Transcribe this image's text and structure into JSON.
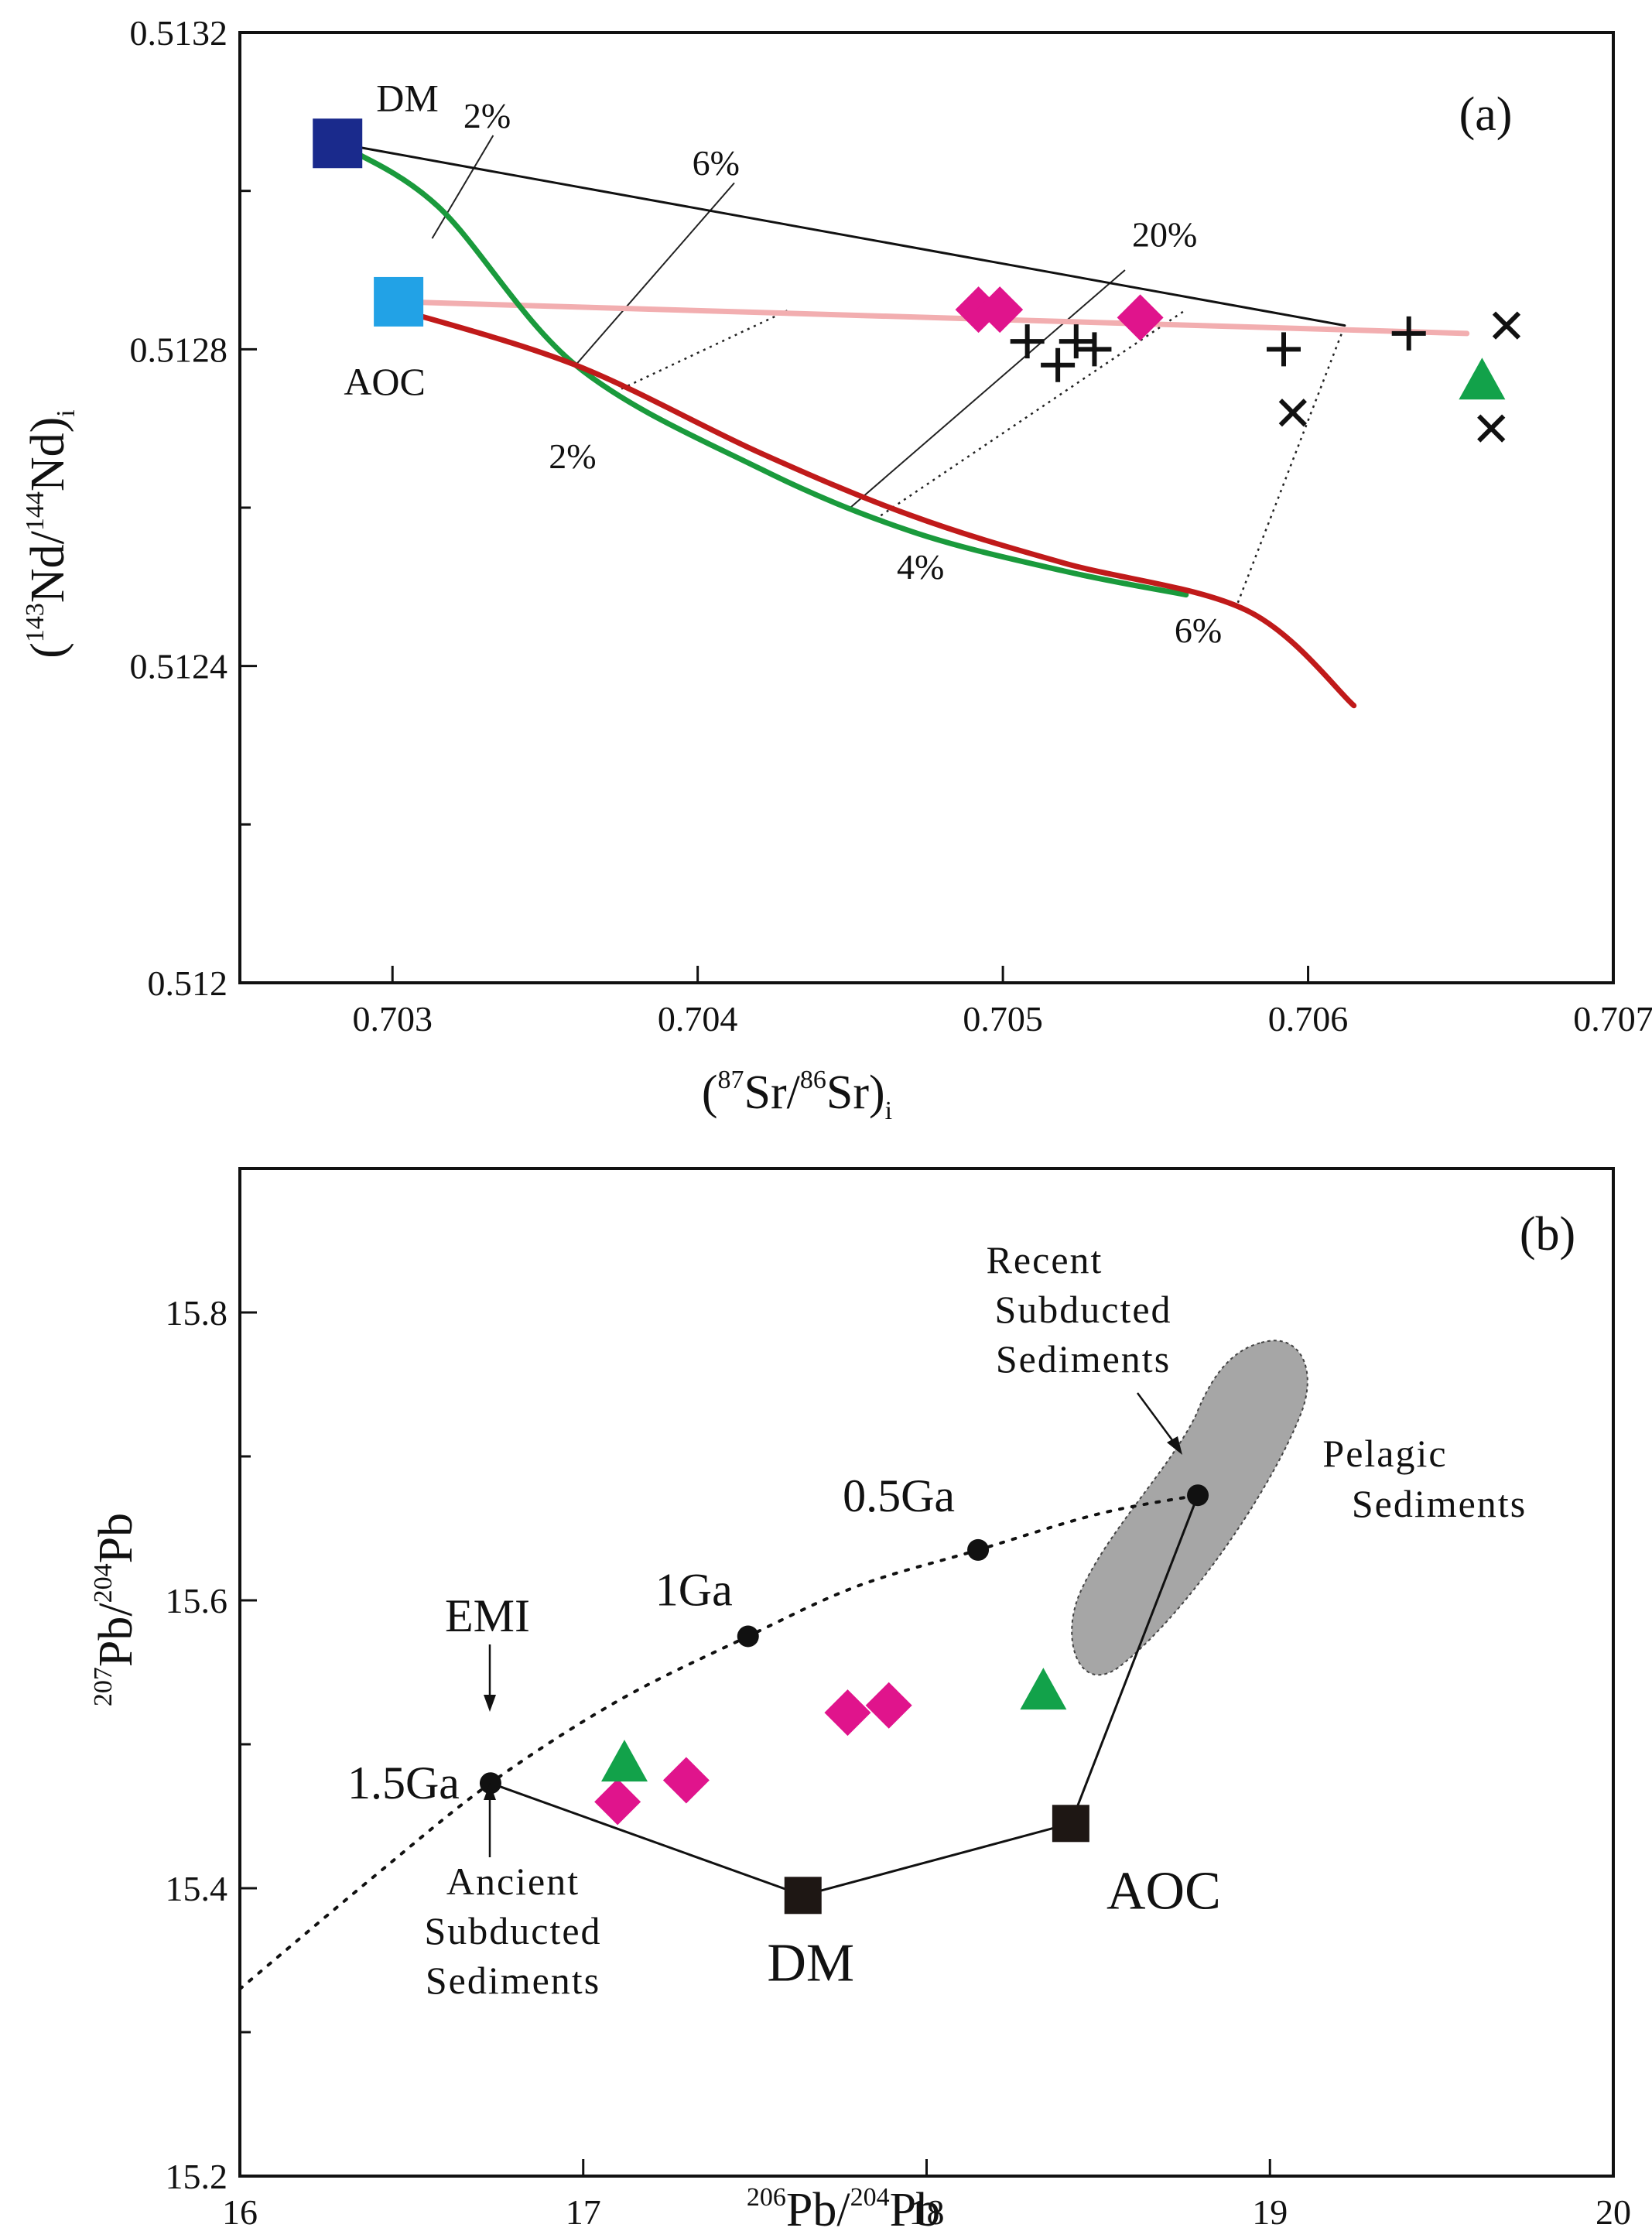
{
  "chart_data": [
    {
      "panel": "(a)",
      "type": "scatter",
      "xlabel": "(87Sr/86Sr)i",
      "ylabel": "(143Nd/144Nd)i",
      "xlim": [
        0.7025,
        0.707
      ],
      "ylim": [
        0.512,
        0.5132
      ],
      "xticks": [
        0.703,
        0.704,
        0.705,
        0.706,
        0.707
      ],
      "xtick_labels": [
        "0.703",
        "0.704",
        "0.705",
        "0.706",
        "0.707"
      ],
      "yticks": [
        0.512,
        0.5124,
        0.5128,
        0.5132
      ],
      "ytick_labels": [
        "0.512",
        "0.5124",
        "0.5128",
        "0.5132"
      ],
      "yminor": [
        0.5122,
        0.5126,
        0.513
      ],
      "endmembers": [
        {
          "name": "DM",
          "label": "DM",
          "x": 0.70282,
          "y": 0.51306,
          "color": "#1a2a8c"
        },
        {
          "name": "AOC",
          "label": "AOC",
          "x": 0.70302,
          "y": 0.51286,
          "color": "#22a2e6"
        }
      ],
      "curves": [
        {
          "name": "DM-sediment mixing line",
          "color": "#111111",
          "width": 3,
          "points": [
            [
              0.70282,
              0.51306
            ],
            [
              0.70612,
              0.51283
            ]
          ]
        },
        {
          "name": "AOC-sediment mixing line",
          "color": "#f2aeb0",
          "width": 7,
          "points": [
            [
              0.70302,
              0.51286
            ],
            [
              0.70652,
              0.51282
            ]
          ]
        },
        {
          "name": "DM-sediment melt curve",
          "color": "#1a9a3c",
          "width": 7,
          "points": [
            [
              0.70282,
              0.51306
            ],
            [
              0.70315,
              0.51298
            ],
            [
              0.7036,
              0.51278
            ],
            [
              0.7042,
              0.51265
            ],
            [
              0.7047,
              0.51257
            ],
            [
              0.7052,
              0.51252
            ],
            [
              0.7056,
              0.51249
            ]
          ]
        },
        {
          "name": "AOC-sediment melt curve",
          "color": "#c01a1a",
          "width": 7,
          "points": [
            [
              0.70302,
              0.51285
            ],
            [
              0.7036,
              0.51278
            ],
            [
              0.7042,
              0.51267
            ],
            [
              0.7047,
              0.51259
            ],
            [
              0.7052,
              0.51253
            ],
            [
              0.7058,
              0.51247
            ],
            [
              0.70615,
              0.51235
            ]
          ]
        }
      ],
      "tie_lines": [
        {
          "style": "solid",
          "points": [
            [
              0.70313,
              0.51294
            ],
            [
              0.70333,
              0.51307
            ]
          ]
        },
        {
          "style": "solid",
          "points": [
            [
              0.7036,
              0.51278
            ],
            [
              0.70412,
              0.51301
            ]
          ]
        },
        {
          "style": "solid",
          "points": [
            [
              0.7045,
              0.5126
            ],
            [
              0.7054,
              0.5129
            ]
          ]
        },
        {
          "style": "dotted",
          "points": [
            [
              0.70375,
              0.51275
            ],
            [
              0.7043,
              0.51285
            ]
          ]
        },
        {
          "style": "dotted",
          "points": [
            [
              0.7046,
              0.51259
            ],
            [
              0.7056,
              0.51285
            ]
          ]
        },
        {
          "style": "dotted",
          "points": [
            [
              0.70577,
              0.51248
            ],
            [
              0.70612,
              0.51283
            ]
          ]
        }
      ],
      "mix_labels": [
        {
          "text": "2%",
          "x": 0.70331,
          "y": 0.51308
        },
        {
          "text": "6%",
          "x": 0.70406,
          "y": 0.51302
        },
        {
          "text": "20%",
          "x": 0.70553,
          "y": 0.51293
        },
        {
          "text": "2%",
          "x": 0.70359,
          "y": 0.51265
        },
        {
          "text": "4%",
          "x": 0.70473,
          "y": 0.51251
        },
        {
          "text": "6%",
          "x": 0.70564,
          "y": 0.51243
        }
      ],
      "series": [
        {
          "name": "magenta diamonds",
          "marker": "diamond",
          "color": "#e0148c",
          "points": [
            [
              0.70492,
              0.51285
            ],
            [
              0.70499,
              0.51285
            ],
            [
              0.70545,
              0.51284
            ]
          ]
        },
        {
          "name": "plus symbols",
          "marker": "plus",
          "color": "#111111",
          "points": [
            [
              0.70508,
              0.51281
            ],
            [
              0.70518,
              0.51278
            ],
            [
              0.70524,
              0.51281
            ],
            [
              0.7053,
              0.5128
            ],
            [
              0.70592,
              0.5128
            ],
            [
              0.70633,
              0.51282
            ]
          ]
        },
        {
          "name": "cross symbols",
          "marker": "cross",
          "color": "#111111",
          "points": [
            [
              0.70595,
              0.51272
            ],
            [
              0.70665,
              0.51283
            ],
            [
              0.7066,
              0.5127
            ]
          ]
        },
        {
          "name": "green triangles",
          "marker": "triangle",
          "color": "#12a24a",
          "points": [
            [
              0.70657,
              0.51276
            ]
          ]
        }
      ]
    },
    {
      "panel": "(b)",
      "type": "scatter",
      "xlabel": "206Pb/204Pb",
      "ylabel": "207Pb/204Pb",
      "xlim": [
        16,
        20
      ],
      "ylim": [
        15.2,
        15.9
      ],
      "xticks": [
        16,
        17,
        18,
        19,
        20
      ],
      "xtick_labels": [
        "16",
        "17",
        "18",
        "19",
        "20"
      ],
      "yticks": [
        15.2,
        15.4,
        15.6,
        15.8
      ],
      "ytick_labels": [
        "15.2",
        "15.4",
        "15.6",
        "15.8"
      ],
      "yminor": [
        15.3,
        15.5,
        15.7
      ],
      "geochron_curve": {
        "style": "dotted",
        "points": [
          [
            16.0,
            15.33
          ],
          [
            16.4,
            15.41
          ],
          [
            16.73,
            15.473
          ],
          [
            17.1,
            15.53
          ],
          [
            17.48,
            15.575
          ],
          [
            17.8,
            15.61
          ],
          [
            18.15,
            15.635
          ],
          [
            18.5,
            15.66
          ],
          [
            18.79,
            15.673
          ]
        ]
      },
      "age_points": [
        {
          "label": "1.5Ga",
          "x": 16.73,
          "y": 15.473
        },
        {
          "label": "1Ga",
          "x": 17.48,
          "y": 15.575
        },
        {
          "label": "0.5Ga",
          "x": 18.15,
          "y": 15.635
        },
        {
          "label": "",
          "x": 18.79,
          "y": 15.673
        }
      ],
      "endmembers": [
        {
          "name": "DM",
          "label": "DM",
          "x": 17.64,
          "y": 15.395
        },
        {
          "name": "AOC",
          "label": "AOC",
          "x": 18.42,
          "y": 15.445
        }
      ],
      "mixing_path": [
        [
          16.73,
          15.473
        ],
        [
          17.64,
          15.395
        ],
        [
          18.42,
          15.445
        ],
        [
          18.79,
          15.673
        ]
      ],
      "pelagic_field": {
        "label_lines": [
          "Pelagic",
          "Sediments"
        ],
        "color": "#a6a6a6"
      },
      "annotations": [
        {
          "lines": [
            "EMI"
          ]
        },
        {
          "lines": [
            "Ancient",
            "Subducted",
            "Sediments"
          ]
        },
        {
          "lines": [
            "Recent",
            "Subducted",
            "Sediments"
          ]
        }
      ],
      "series": [
        {
          "name": "magenta diamonds",
          "marker": "diamond",
          "color": "#e0148c",
          "points": [
            [
              17.1,
              15.46
            ],
            [
              17.3,
              15.475
            ],
            [
              17.77,
              15.522
            ],
            [
              17.89,
              15.527
            ]
          ]
        },
        {
          "name": "green triangles",
          "marker": "triangle",
          "color": "#12a24a",
          "points": [
            [
              17.12,
              15.487
            ],
            [
              18.34,
              15.537
            ]
          ]
        }
      ]
    }
  ]
}
